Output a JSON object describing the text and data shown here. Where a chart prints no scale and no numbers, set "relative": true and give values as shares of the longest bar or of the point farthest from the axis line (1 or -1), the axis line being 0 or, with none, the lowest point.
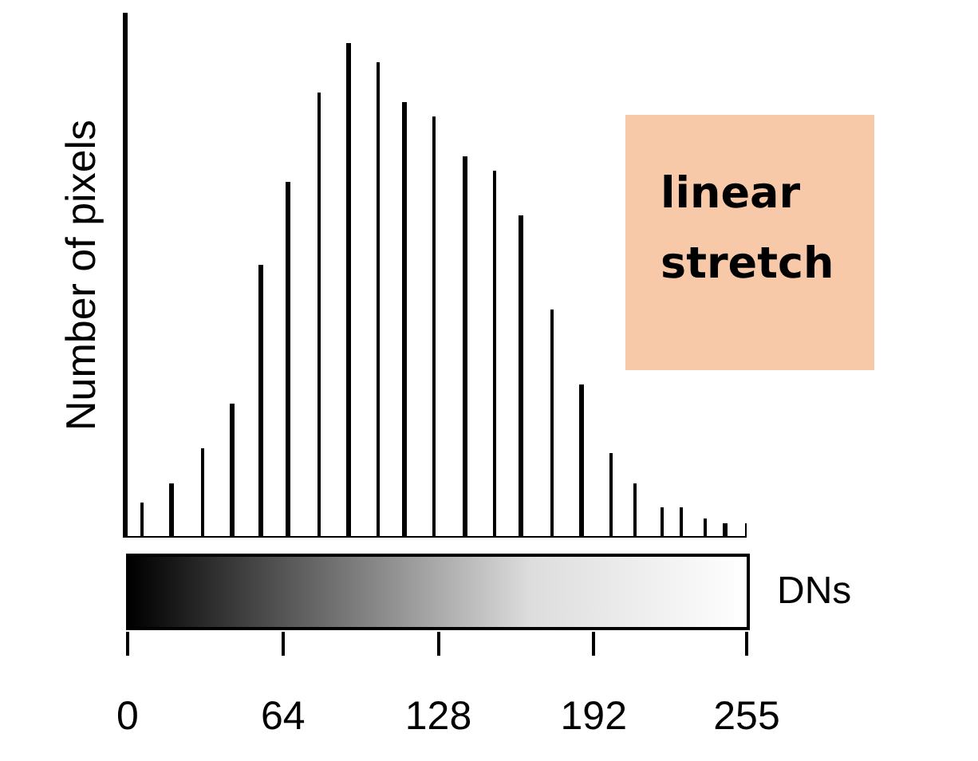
{
  "chart_data": {
    "type": "bar",
    "relative": true,
    "xlabel": "DNs",
    "ylabel": "Number of pixels",
    "annotations": [
      "linear stretch"
    ],
    "x": [
      6,
      18,
      31,
      43,
      55,
      66,
      79,
      91,
      103,
      114,
      126,
      139,
      151,
      162,
      175,
      187,
      199,
      209,
      220,
      228,
      238,
      246,
      255
    ],
    "values": [
      0.07,
      0.11,
      0.18,
      0.27,
      0.55,
      0.72,
      0.9,
      1,
      0.96,
      0.88,
      0.85,
      0.77,
      0.74,
      0.65,
      0.46,
      0.31,
      0.17,
      0.11,
      0.06,
      0.06,
      0.04,
      0.03,
      0.03
    ],
    "color": "#000000",
    "xlim": [
      0,
      255
    ],
    "xticks": [
      0,
      64,
      128,
      192,
      255
    ],
    "tick_labels": "x"
  }
}
